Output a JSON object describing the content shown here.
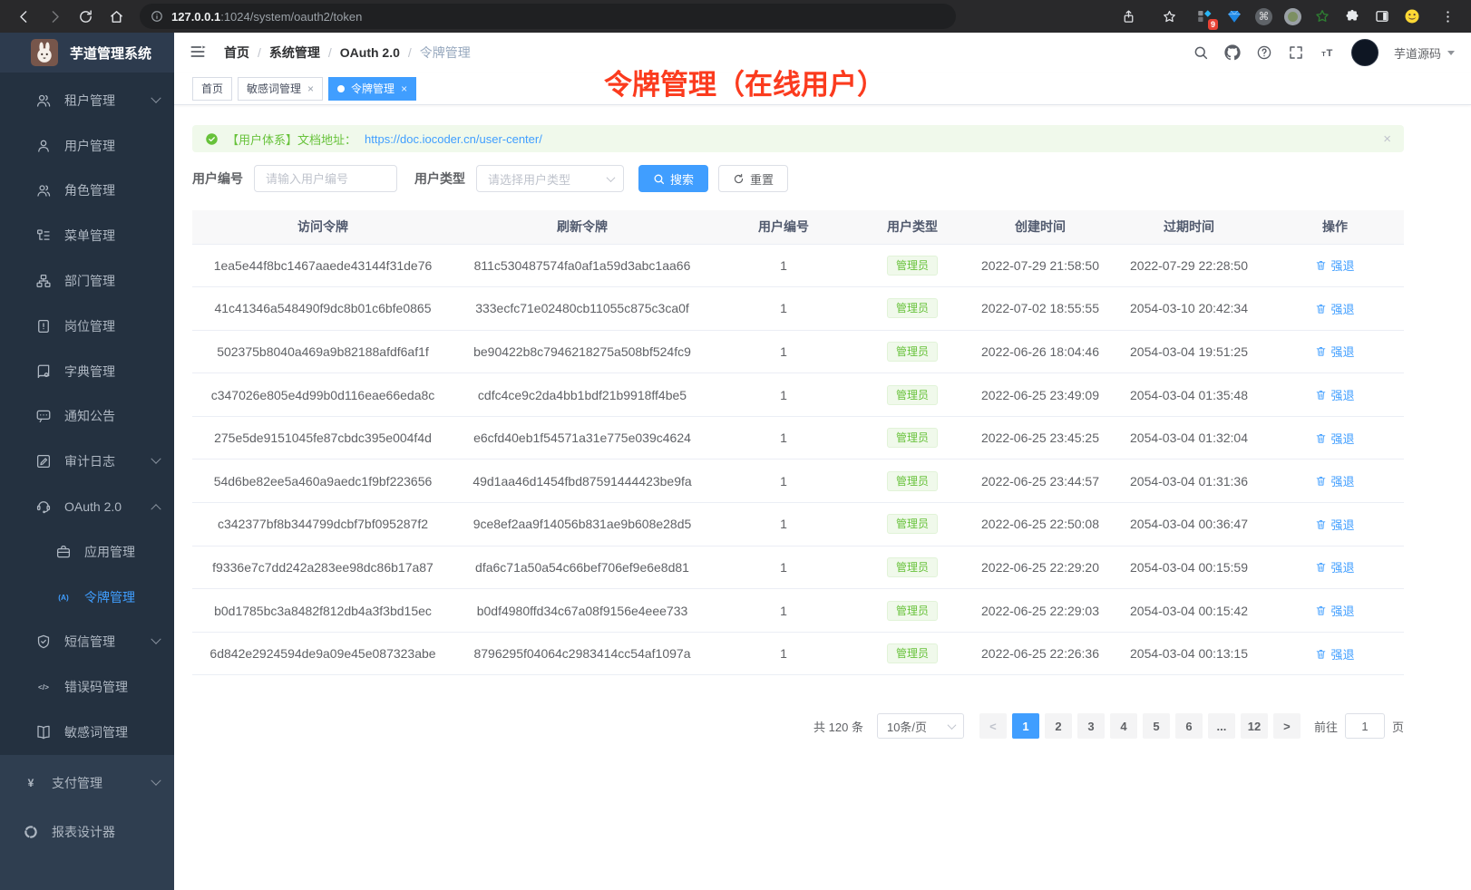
{
  "browser": {
    "url_host": "127.0.0.1",
    "url_rest": ":1024/system/oauth2/token",
    "extension_badge": "9"
  },
  "sidebar": {
    "app_title": "芋道管理系统",
    "items": [
      {
        "label": "租户管理",
        "icon": "tenants-icon",
        "chevron": "down"
      },
      {
        "label": "用户管理",
        "icon": "user-icon"
      },
      {
        "label": "角色管理",
        "icon": "roles-icon"
      },
      {
        "label": "菜单管理",
        "icon": "menu-tree-icon"
      },
      {
        "label": "部门管理",
        "icon": "department-icon"
      },
      {
        "label": "岗位管理",
        "icon": "post-icon"
      },
      {
        "label": "字典管理",
        "icon": "dictionary-icon"
      },
      {
        "label": "通知公告",
        "icon": "notice-icon"
      },
      {
        "label": "审计日志",
        "icon": "audit-log-icon",
        "chevron": "down"
      },
      {
        "label": "OAuth 2.0",
        "icon": "oauth-icon",
        "chevron": "up"
      },
      {
        "label": "应用管理",
        "icon": "app-icon",
        "child": true
      },
      {
        "label": "令牌管理",
        "icon": "token-icon",
        "child": true,
        "active": true
      },
      {
        "label": "短信管理",
        "icon": "sms-icon",
        "chevron": "down"
      },
      {
        "label": "错误码管理",
        "icon": "error-code-icon"
      },
      {
        "label": "敏感词管理",
        "icon": "sensitive-word-icon"
      },
      {
        "label": "支付管理",
        "icon": "pay-icon",
        "chevron": "down",
        "section2": true
      },
      {
        "label": "报表设计器",
        "icon": "report-icon",
        "section2": true
      }
    ]
  },
  "navbar": {
    "breadcrumb": [
      "首页",
      "系统管理",
      "OAuth 2.0",
      "令牌管理"
    ],
    "username": "芋道源码"
  },
  "tabs": [
    {
      "label": "首页"
    },
    {
      "label": "敏感词管理",
      "closable": true
    },
    {
      "label": "令牌管理",
      "closable": true,
      "active": true
    }
  ],
  "annotation": {
    "text": "令牌管理（在线用户）",
    "color": "#fb3b1e"
  },
  "alert": {
    "text": "【用户体系】文档地址：",
    "link": "https://doc.iocoder.cn/user-center/"
  },
  "filters": {
    "user_id_label": "用户编号",
    "user_id_placeholder": "请输入用户编号",
    "user_type_label": "用户类型",
    "user_type_placeholder": "请选择用户类型",
    "search_label": "搜索",
    "reset_label": "重置"
  },
  "table": {
    "columns": [
      "访问令牌",
      "刷新令牌",
      "用户编号",
      "用户类型",
      "创建时间",
      "过期时间",
      "操作"
    ],
    "rows": [
      {
        "access": "1ea5e44f8bc1467aaede43144f31de76",
        "refresh": "811c530487574fa0af1a59d3abc1aa66",
        "user_id": "1",
        "user_type": "管理员",
        "created": "2022-07-29 21:58:50",
        "expires": "2022-07-29 22:28:50",
        "action": "强退"
      },
      {
        "access": "41c41346a548490f9dc8b01c6bfe0865",
        "refresh": "333ecfc71e02480cb11055c875c3ca0f",
        "user_id": "1",
        "user_type": "管理员",
        "created": "2022-07-02 18:55:55",
        "expires": "2054-03-10 20:42:34",
        "action": "强退"
      },
      {
        "access": "502375b8040a469a9b82188afdf6af1f",
        "refresh": "be90422b8c7946218275a508bf524fc9",
        "user_id": "1",
        "user_type": "管理员",
        "created": "2022-06-26 18:04:46",
        "expires": "2054-03-04 19:51:25",
        "action": "强退"
      },
      {
        "access": "c347026e805e4d99b0d116eae66eda8c",
        "refresh": "cdfc4ce9c2da4bb1bdf21b9918ff4be5",
        "user_id": "1",
        "user_type": "管理员",
        "created": "2022-06-25 23:49:09",
        "expires": "2054-03-04 01:35:48",
        "action": "强退"
      },
      {
        "access": "275e5de9151045fe87cbdc395e004f4d",
        "refresh": "e6cfd40eb1f54571a31e775e039c4624",
        "user_id": "1",
        "user_type": "管理员",
        "created": "2022-06-25 23:45:25",
        "expires": "2054-03-04 01:32:04",
        "action": "强退"
      },
      {
        "access": "54d6be82ee5a460a9aedc1f9bf223656",
        "refresh": "49d1aa46d1454fbd87591444423be9fa",
        "user_id": "1",
        "user_type": "管理员",
        "created": "2022-06-25 23:44:57",
        "expires": "2054-03-04 01:31:36",
        "action": "强退"
      },
      {
        "access": "c342377bf8b344799dcbf7bf095287f2",
        "refresh": "9ce8ef2aa9f14056b831ae9b608e28d5",
        "user_id": "1",
        "user_type": "管理员",
        "created": "2022-06-25 22:50:08",
        "expires": "2054-03-04 00:36:47",
        "action": "强退"
      },
      {
        "access": "f9336e7c7dd242a283ee98dc86b17a87",
        "refresh": "dfa6c71a50a54c66bef706ef9e6e8d81",
        "user_id": "1",
        "user_type": "管理员",
        "created": "2022-06-25 22:29:20",
        "expires": "2054-03-04 00:15:59",
        "action": "强退"
      },
      {
        "access": "b0d1785bc3a8482f812db4a3f3bd15ec",
        "refresh": "b0df4980ffd34c67a08f9156e4eee733",
        "user_id": "1",
        "user_type": "管理员",
        "created": "2022-06-25 22:29:03",
        "expires": "2054-03-04 00:15:42",
        "action": "强退"
      },
      {
        "access": "6d842e2924594de9a09e45e087323abe",
        "refresh": "8796295f04064c2983414cc54af1097a",
        "user_id": "1",
        "user_type": "管理员",
        "created": "2022-06-25 22:26:36",
        "expires": "2054-03-04 00:13:15",
        "action": "强退"
      }
    ]
  },
  "pagination": {
    "total_label": "共 120 条",
    "page_size": "10条/页",
    "prev": "<",
    "next": ">",
    "pages": [
      "1",
      "2",
      "3",
      "4",
      "5",
      "6",
      "...",
      "12"
    ],
    "active_page": "1",
    "goto_label": "前往",
    "goto_value": "1",
    "goto_suffix": "页"
  },
  "colors": {
    "accent": "#409eff",
    "success": "#67c23a"
  }
}
